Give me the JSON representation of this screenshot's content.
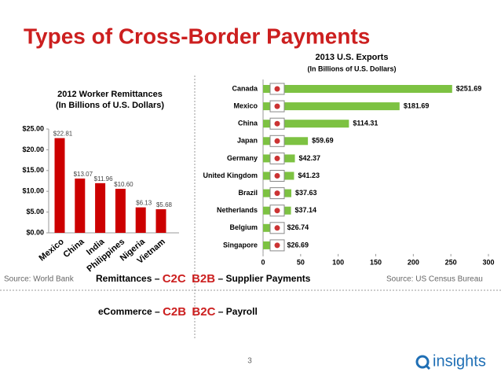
{
  "slide": {
    "title": "Types of Cross-Border Payments",
    "source_left": "Source: World Bank",
    "source_right": "Source:  US Census Bureau",
    "row1": [
      "Remittances  –",
      "C2C",
      "B2B",
      "– Supplier Payments"
    ],
    "row2": [
      "eCommerce –",
      "C2B",
      "B2C",
      "– Payroll"
    ],
    "page_number": "3",
    "logo": "insights"
  },
  "chart_data": [
    {
      "type": "bar",
      "title": "2012 Worker Remittances",
      "subtitle": "(In Billions of U.S. Dollars)",
      "categories": [
        "Mexico",
        "China",
        "India",
        "Philippines",
        "Nigeria",
        "Vietnam"
      ],
      "values": [
        22.81,
        13.07,
        11.96,
        10.6,
        6.13,
        5.68
      ],
      "value_labels": [
        "$22.81",
        "$13.07",
        "$11.96",
        "$10.60",
        "$6.13",
        "$5.68"
      ],
      "color": "#cc0000",
      "ylim": [
        0,
        25
      ],
      "yticks": [
        {
          "value": 0,
          "label": "$0.00"
        },
        {
          "value": 5,
          "label": "$5.00"
        },
        {
          "value": 10,
          "label": "$10.00"
        },
        {
          "value": 15,
          "label": "$15.00"
        },
        {
          "value": 20,
          "label": "$20.00"
        },
        {
          "value": 25,
          "label": "$25.00"
        }
      ]
    },
    {
      "type": "hbar",
      "title": "2013 U.S. Exports",
      "subtitle": "(In Billions of U.S. Dollars)",
      "categories": [
        "Canada",
        "Mexico",
        "China",
        "Japan",
        "Germany",
        "United Kingdom",
        "Brazil",
        "Netherlands",
        "Belgium",
        "Singapore"
      ],
      "values": [
        251.69,
        181.69,
        114.31,
        59.69,
        42.37,
        41.23,
        37.63,
        37.14,
        26.74,
        26.69
      ],
      "value_labels": [
        "$251.69",
        "$181.69",
        "$114.31",
        "$59.69",
        "$42.37",
        "$41.23",
        "$37.63",
        "$37.14",
        "$26.74",
        "$26.69"
      ],
      "color": "#7dc242",
      "xlim": [
        0,
        300
      ],
      "xticks": [
        0,
        50,
        100,
        150,
        200,
        250,
        300
      ]
    }
  ]
}
